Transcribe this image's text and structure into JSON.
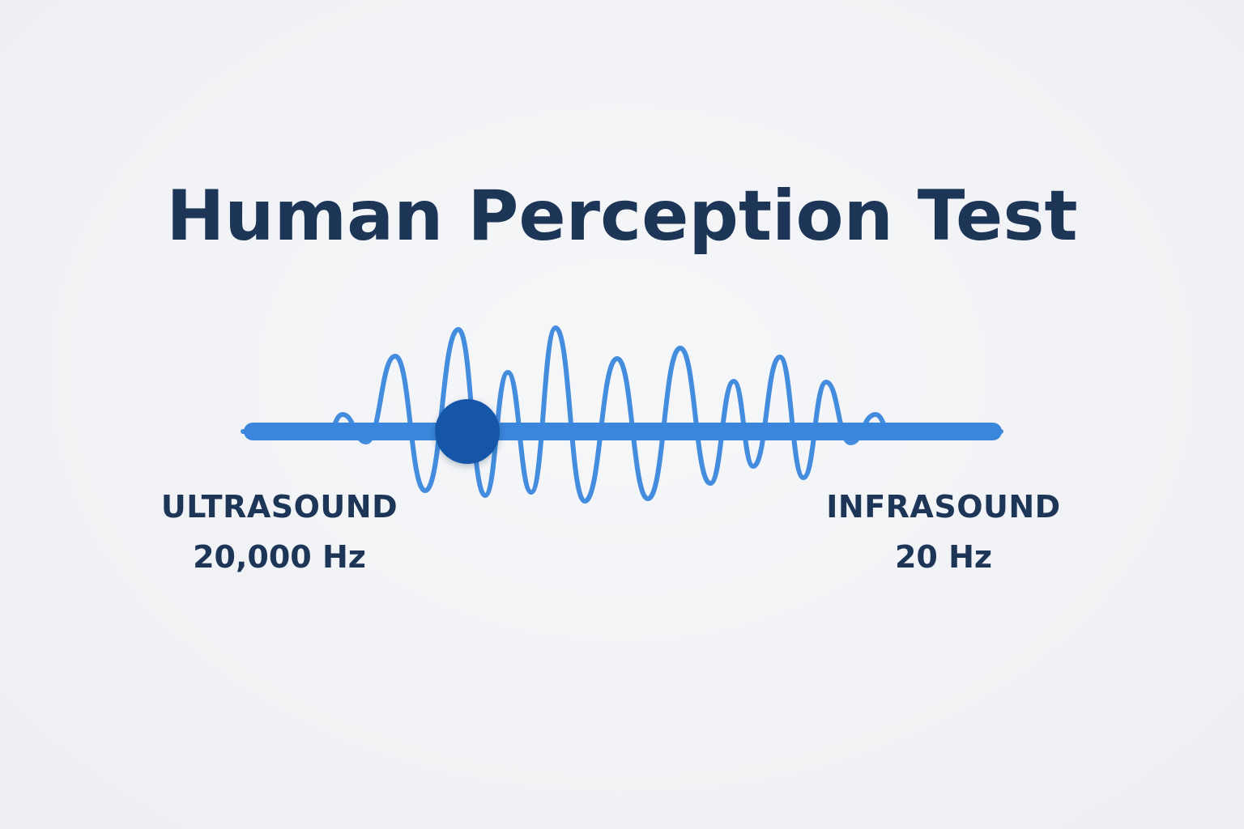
{
  "title": "Human Perception Test",
  "slider": {
    "value": 0.29,
    "left": {
      "name": "ULTRASOUND",
      "value": "20,000 Hz"
    },
    "right": {
      "name": "INFRASOUND",
      "value": "20 Hz"
    }
  },
  "colors": {
    "background": "#eff1f4",
    "title": "#1d3557",
    "track": "#3a86dc",
    "wave": "#3a86dc",
    "thumb": "#1556a8",
    "labels": "#1d3557"
  }
}
